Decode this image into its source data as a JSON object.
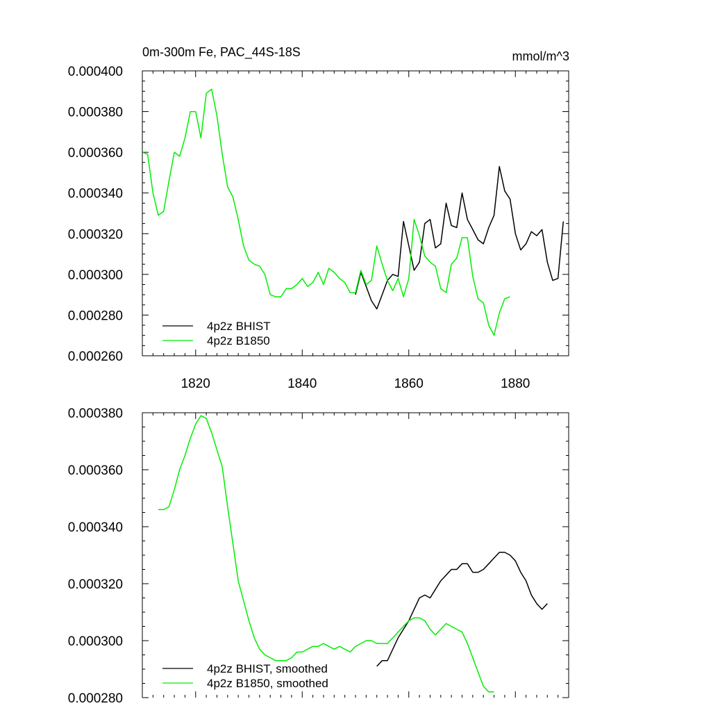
{
  "chart_data": [
    {
      "type": "line",
      "title": "0m-300m Fe, PAC_44S-18S",
      "units": "mmol/m^3",
      "xlabel": "",
      "ylabel": "",
      "xlim": [
        1810,
        1890
      ],
      "ylim": [
        0.00026,
        0.0004
      ],
      "xticks": [
        1820,
        1840,
        1860,
        1880
      ],
      "xtick_labels": [
        "1820",
        "1840",
        "1860",
        "1880"
      ],
      "yticks": [
        0.00026,
        0.00028,
        0.0003,
        0.00032,
        0.00034,
        0.00036,
        0.00038,
        0.0004
      ],
      "ytick_labels": [
        "0.000260",
        "0.000280",
        "0.000300",
        "0.000320",
        "0.000340",
        "0.000360",
        "0.000380",
        "0.000400"
      ],
      "legend": "bottom-left",
      "series": [
        {
          "name": "4p2z BHIST",
          "color": "#000000",
          "x": [
            1850,
            1851,
            1852,
            1853,
            1854,
            1855,
            1856,
            1857,
            1858,
            1859,
            1860,
            1861,
            1862,
            1863,
            1864,
            1865,
            1866,
            1867,
            1868,
            1869,
            1870,
            1871,
            1872,
            1873,
            1874,
            1875,
            1876,
            1877,
            1878,
            1879,
            1880,
            1881,
            1882,
            1883,
            1884,
            1885,
            1886,
            1887,
            1888,
            1889
          ],
          "y": [
            0.00029,
            0.000301,
            0.000294,
            0.000287,
            0.000283,
            0.00029,
            0.000297,
            0.0003,
            0.000299,
            0.000326,
            0.000314,
            0.000302,
            0.000306,
            0.000325,
            0.000327,
            0.000313,
            0.000315,
            0.000335,
            0.000324,
            0.000323,
            0.00034,
            0.000327,
            0.000322,
            0.000317,
            0.000315,
            0.000323,
            0.000329,
            0.000353,
            0.000341,
            0.000337,
            0.00032,
            0.000312,
            0.000315,
            0.000321,
            0.000319,
            0.000322,
            0.000306,
            0.000297,
            0.000298,
            0.000326
          ]
        },
        {
          "name": "4p2z B1850",
          "color": "#00ee00",
          "x": [
            1810,
            1811,
            1812,
            1813,
            1814,
            1815,
            1816,
            1817,
            1818,
            1819,
            1820,
            1821,
            1822,
            1823,
            1824,
            1825,
            1826,
            1827,
            1828,
            1829,
            1830,
            1831,
            1832,
            1833,
            1834,
            1835,
            1836,
            1837,
            1838,
            1839,
            1840,
            1841,
            1842,
            1843,
            1844,
            1845,
            1846,
            1847,
            1848,
            1849,
            1850,
            1851,
            1852,
            1853,
            1854,
            1855,
            1856,
            1857,
            1858,
            1859,
            1860,
            1861,
            1862,
            1863,
            1864,
            1865,
            1866,
            1867,
            1868,
            1869,
            1870,
            1871,
            1872,
            1873,
            1874,
            1875,
            1876,
            1877,
            1878,
            1879
          ],
          "y": [
            0.00036,
            0.000359,
            0.00034,
            0.000329,
            0.000331,
            0.000346,
            0.00036,
            0.000358,
            0.000367,
            0.00038,
            0.00038,
            0.000367,
            0.000389,
            0.000391,
            0.000378,
            0.000359,
            0.000343,
            0.000338,
            0.000327,
            0.000314,
            0.000307,
            0.000305,
            0.000304,
            0.0003,
            0.00029,
            0.000289,
            0.000289,
            0.000293,
            0.000293,
            0.000295,
            0.000298,
            0.000294,
            0.000296,
            0.000301,
            0.000295,
            0.000303,
            0.000301,
            0.000298,
            0.000296,
            0.000291,
            0.000291,
            0.000302,
            0.000295,
            0.000297,
            0.000314,
            0.000305,
            0.000297,
            0.000292,
            0.000298,
            0.000289,
            0.000298,
            0.000327,
            0.000319,
            0.000309,
            0.000306,
            0.000304,
            0.000293,
            0.000291,
            0.000305,
            0.000308,
            0.000318,
            0.000318,
            0.000299,
            0.000288,
            0.000286,
            0.000275,
            0.00027,
            0.000281,
            0.000288,
            0.000289
          ]
        }
      ]
    },
    {
      "type": "line",
      "title": "",
      "xlabel": "",
      "ylabel": "",
      "xlim": [
        1810,
        1890
      ],
      "ylim": [
        0.00028,
        0.00038
      ],
      "xticks": [
        1820,
        1840,
        1860,
        1880
      ],
      "xtick_labels": [],
      "yticks": [
        0.00028,
        0.0003,
        0.00032,
        0.00034,
        0.00036,
        0.00038
      ],
      "ytick_labels": [
        "0.000280",
        "0.000300",
        "0.000320",
        "0.000340",
        "0.000360",
        "0.000380"
      ],
      "legend": "bottom-left",
      "series": [
        {
          "name": "4p2z BHIST, smoothed",
          "color": "#000000",
          "x": [
            1854,
            1855,
            1856,
            1857,
            1858,
            1859,
            1860,
            1861,
            1862,
            1863,
            1864,
            1865,
            1866,
            1867,
            1868,
            1869,
            1870,
            1871,
            1872,
            1873,
            1874,
            1875,
            1876,
            1877,
            1878,
            1879,
            1880,
            1881,
            1882,
            1883,
            1884,
            1885,
            1886
          ],
          "y": [
            0.000291,
            0.000293,
            0.000293,
            0.000297,
            0.000301,
            0.000304,
            0.000307,
            0.000311,
            0.000315,
            0.000316,
            0.000315,
            0.000318,
            0.000321,
            0.000323,
            0.000325,
            0.000325,
            0.000327,
            0.000327,
            0.000324,
            0.000324,
            0.000325,
            0.000327,
            0.000329,
            0.000331,
            0.000331,
            0.00033,
            0.000328,
            0.000324,
            0.000321,
            0.000316,
            0.000313,
            0.000311,
            0.000313
          ]
        },
        {
          "name": "4p2z B1850, smoothed",
          "color": "#00ee00",
          "x": [
            1813,
            1814,
            1815,
            1816,
            1817,
            1818,
            1819,
            1820,
            1821,
            1822,
            1823,
            1824,
            1825,
            1826,
            1827,
            1828,
            1829,
            1830,
            1831,
            1832,
            1833,
            1834,
            1835,
            1836,
            1837,
            1838,
            1839,
            1840,
            1841,
            1842,
            1843,
            1844,
            1845,
            1846,
            1847,
            1848,
            1849,
            1850,
            1851,
            1852,
            1853,
            1854,
            1855,
            1856,
            1857,
            1858,
            1859,
            1860,
            1861,
            1862,
            1863,
            1864,
            1865,
            1866,
            1867,
            1868,
            1869,
            1870,
            1871,
            1872,
            1873,
            1874,
            1875,
            1876
          ],
          "y": [
            0.000346,
            0.000346,
            0.000347,
            0.000353,
            0.00036,
            0.000365,
            0.000371,
            0.000376,
            0.000379,
            0.000378,
            0.000373,
            0.000367,
            0.000361,
            0.000347,
            0.000334,
            0.000321,
            0.000314,
            0.000307,
            0.000301,
            0.000297,
            0.000295,
            0.000294,
            0.000293,
            0.000293,
            0.000293,
            0.000294,
            0.000296,
            0.000296,
            0.000297,
            0.000298,
            0.000298,
            0.000299,
            0.000298,
            0.000297,
            0.000298,
            0.000297,
            0.000296,
            0.000298,
            0.000299,
            0.0003,
            0.0003,
            0.000299,
            0.000299,
            0.000299,
            0.000301,
            0.000303,
            0.000305,
            0.000307,
            0.000308,
            0.000308,
            0.000307,
            0.000304,
            0.000302,
            0.000304,
            0.000306,
            0.000305,
            0.000304,
            0.000303,
            0.000299,
            0.000294,
            0.000289,
            0.000284,
            0.000282,
            0.000282
          ]
        }
      ]
    }
  ]
}
